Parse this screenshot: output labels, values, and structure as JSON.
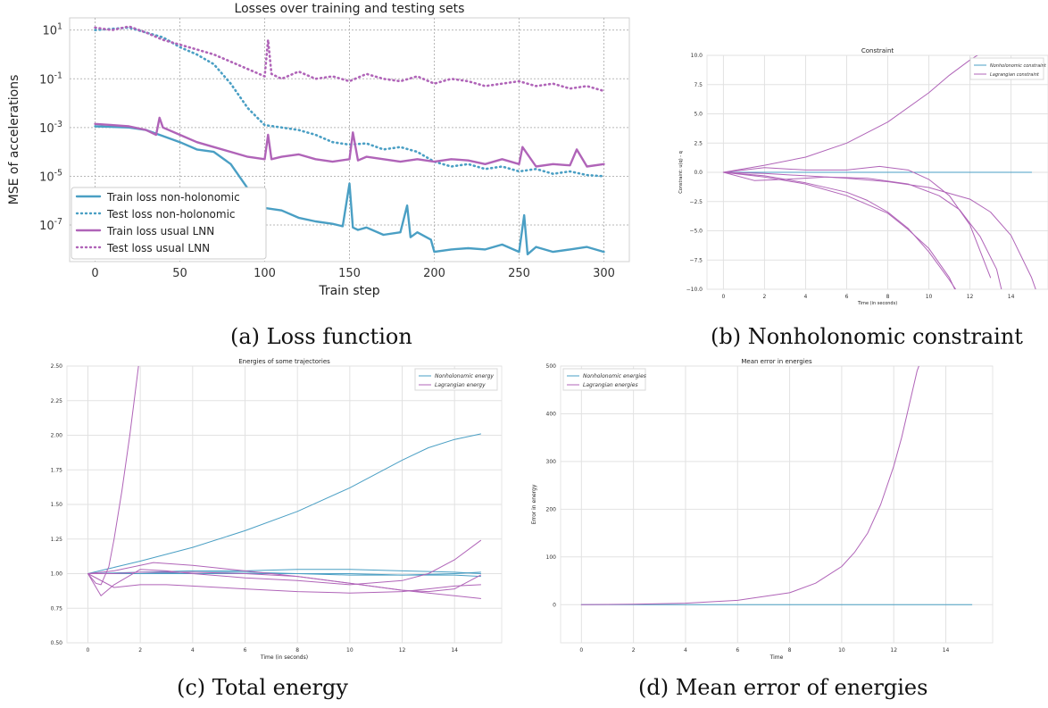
{
  "captions": {
    "a": "(a) Loss function",
    "b": "(b) Nonholonomic constraint",
    "c": "(c) Total energy",
    "d": "(d) Mean error of energies"
  },
  "colors": {
    "blue": "#4a9fc4",
    "purple": "#b064b8",
    "grid": "#c8c8c8"
  },
  "chart_data": [
    {
      "id": "loss",
      "type": "line",
      "title": "Losses over training and testing sets",
      "xlabel": "Train step",
      "ylabel": "MSE of accelerations",
      "xlim": [
        -15,
        315
      ],
      "ylim_log10": [
        -8.5,
        1.5
      ],
      "y_scale": "log",
      "xticks": [
        0,
        50,
        100,
        150,
        200,
        250,
        300
      ],
      "yticks": [
        {
          "value": 1,
          "label": "10^1"
        },
        {
          "value": -1,
          "label": "10^-1"
        },
        {
          "value": -3,
          "label": "10^-3"
        },
        {
          "value": -5,
          "label": "10^-5"
        },
        {
          "value": -7,
          "label": "10^-7"
        }
      ],
      "grid": true,
      "legend_position": "lower-left",
      "series": [
        {
          "name": "Train loss non-holonomic",
          "color": "#4a9fc4",
          "style": "solid",
          "x": [
            0,
            20,
            30,
            40,
            50,
            60,
            70,
            80,
            90,
            100,
            110,
            120,
            130,
            140,
            146,
            150,
            152,
            155,
            160,
            170,
            180,
            184,
            186,
            190,
            198,
            200,
            210,
            220,
            230,
            240,
            250,
            253,
            255,
            260,
            270,
            280,
            290,
            300
          ],
          "log10_y": [
            -2.95,
            -3.0,
            -3.1,
            -3.35,
            -3.6,
            -3.9,
            -4.0,
            -4.5,
            -5.5,
            -6.3,
            -6.4,
            -6.7,
            -6.85,
            -6.95,
            -7.05,
            -5.3,
            -7.1,
            -7.2,
            -7.1,
            -7.4,
            -7.3,
            -6.2,
            -7.5,
            -7.3,
            -7.6,
            -8.1,
            -8.0,
            -7.95,
            -8.0,
            -7.8,
            -8.1,
            -6.6,
            -8.2,
            -7.9,
            -8.1,
            -8.0,
            -7.9,
            -8.1
          ]
        },
        {
          "name": "Test loss non-holonomic",
          "color": "#4a9fc4",
          "style": "dotted",
          "x": [
            0,
            10,
            20,
            30,
            40,
            50,
            60,
            70,
            80,
            90,
            100,
            110,
            120,
            130,
            140,
            150,
            160,
            170,
            180,
            190,
            200,
            210,
            220,
            230,
            240,
            250,
            260,
            270,
            280,
            290,
            300
          ],
          "log10_y": [
            1.0,
            1.05,
            1.1,
            0.9,
            0.7,
            0.3,
            0.0,
            -0.4,
            -1.2,
            -2.2,
            -2.9,
            -3.0,
            -3.1,
            -3.3,
            -3.6,
            -3.7,
            -3.65,
            -3.9,
            -3.8,
            -4.0,
            -4.4,
            -4.6,
            -4.5,
            -4.7,
            -4.6,
            -4.8,
            -4.7,
            -4.9,
            -4.8,
            -4.95,
            -5.0
          ]
        },
        {
          "name": "Train loss usual LNN",
          "color": "#b064b8",
          "style": "solid",
          "x": [
            0,
            10,
            20,
            30,
            36,
            38,
            40,
            50,
            60,
            70,
            80,
            90,
            100,
            102,
            104,
            110,
            120,
            130,
            140,
            150,
            152,
            155,
            160,
            170,
            180,
            190,
            200,
            210,
            220,
            230,
            240,
            250,
            252,
            260,
            270,
            280,
            284,
            290,
            300
          ],
          "log10_y": [
            -2.85,
            -2.9,
            -2.95,
            -3.1,
            -3.3,
            -2.6,
            -3.0,
            -3.3,
            -3.6,
            -3.8,
            -4.0,
            -4.2,
            -4.3,
            -3.3,
            -4.3,
            -4.2,
            -4.1,
            -4.3,
            -4.4,
            -4.3,
            -3.2,
            -4.35,
            -4.2,
            -4.3,
            -4.4,
            -4.3,
            -4.4,
            -4.3,
            -4.35,
            -4.5,
            -4.3,
            -4.5,
            -3.8,
            -4.6,
            -4.5,
            -4.55,
            -3.9,
            -4.6,
            -4.5
          ]
        },
        {
          "name": "Test loss usual LNN",
          "color": "#b064b8",
          "style": "dotted",
          "x": [
            0,
            10,
            20,
            30,
            40,
            50,
            60,
            70,
            80,
            90,
            100,
            102,
            104,
            110,
            120,
            130,
            140,
            150,
            160,
            170,
            180,
            190,
            200,
            210,
            220,
            230,
            240,
            250,
            260,
            270,
            280,
            290,
            300
          ],
          "log10_y": [
            1.1,
            1.0,
            1.15,
            0.9,
            0.6,
            0.4,
            0.2,
            0.0,
            -0.3,
            -0.6,
            -0.9,
            0.6,
            -0.8,
            -1.0,
            -0.7,
            -1.0,
            -0.9,
            -1.1,
            -0.8,
            -1.0,
            -1.1,
            -0.9,
            -1.2,
            -1.0,
            -1.1,
            -1.3,
            -1.2,
            -1.1,
            -1.3,
            -1.2,
            -1.4,
            -1.3,
            -1.5
          ]
        }
      ]
    },
    {
      "id": "constraint",
      "type": "line",
      "title": "Constraint",
      "xlabel": "Time (in seconds)",
      "ylabel": "Constraint: u(q) - q",
      "xlim": [
        -0.8,
        15.8
      ],
      "ylim": [
        -10,
        10
      ],
      "xticks": [
        0,
        2,
        4,
        6,
        8,
        10,
        12,
        14
      ],
      "yticks": [
        {
          "value": 10,
          "label": "10.0"
        },
        {
          "value": 7.5,
          "label": "7.5"
        },
        {
          "value": 5,
          "label": "5.0"
        },
        {
          "value": 2.5,
          "label": "2.5"
        },
        {
          "value": 0,
          "label": "0.0"
        },
        {
          "value": -2.5,
          "label": "−2.5"
        },
        {
          "value": -5,
          "label": "−5.0"
        },
        {
          "value": -7.5,
          "label": "−7.5"
        },
        {
          "value": -10,
          "label": "−10.0"
        }
      ],
      "grid": true,
      "legend_position": "top-right",
      "legend": [
        {
          "label": "Nonholonomic constraint",
          "color": "#4a9fc4"
        },
        {
          "label": "Lagrangian constraint",
          "color": "#b064b8"
        }
      ],
      "series": [
        {
          "color": "#4a9fc4",
          "x": [
            0,
            15
          ],
          "y": [
            0,
            0
          ]
        },
        {
          "color": "#b064b8",
          "x": [
            0,
            2,
            4,
            6,
            8,
            10,
            11,
            12,
            12.8
          ],
          "y": [
            0,
            0.6,
            1.3,
            2.5,
            4.3,
            6.8,
            8.3,
            9.6,
            10.5
          ]
        },
        {
          "color": "#b064b8",
          "x": [
            0,
            1,
            2,
            4,
            6,
            7.6,
            9,
            10,
            11,
            12,
            13
          ],
          "y": [
            0,
            0.2,
            0.4,
            0.2,
            0.2,
            0.5,
            0.2,
            -0.6,
            -2.0,
            -4.5,
            -9.0
          ]
        },
        {
          "color": "#b064b8",
          "x": [
            0,
            1.5,
            3,
            5,
            7,
            9,
            10.5,
            11.5,
            12.5,
            13.3,
            13.6
          ],
          "y": [
            0,
            -0.7,
            -0.6,
            -0.4,
            -0.5,
            -1.0,
            -2.0,
            -3.2,
            -5.5,
            -8.3,
            -10.5
          ]
        },
        {
          "color": "#b064b8",
          "x": [
            0,
            2,
            4,
            6,
            7,
            8,
            9,
            10,
            11,
            11.5
          ],
          "y": [
            0,
            -0.3,
            -0.9,
            -1.7,
            -2.4,
            -3.4,
            -4.8,
            -6.8,
            -9.2,
            -10.5
          ]
        },
        {
          "color": "#b064b8",
          "x": [
            0,
            2,
            4,
            6,
            8,
            9,
            10,
            11,
            11.4
          ],
          "y": [
            0,
            -0.4,
            -1.0,
            -2.0,
            -3.5,
            -4.9,
            -6.5,
            -9.0,
            -10.5
          ]
        },
        {
          "color": "#b064b8",
          "x": [
            0,
            2,
            4,
            6,
            8,
            10,
            12,
            13,
            14,
            15,
            15.3
          ],
          "y": [
            0,
            -0.1,
            -0.3,
            -0.5,
            -0.8,
            -1.3,
            -2.3,
            -3.4,
            -5.4,
            -9.0,
            -10.5
          ]
        }
      ]
    },
    {
      "id": "energies",
      "type": "line",
      "title": "Energies of some trajectories",
      "xlabel": "Time (in seconds)",
      "ylabel": "",
      "xlim": [
        -0.8,
        15.8
      ],
      "ylim": [
        0.5,
        2.5
      ],
      "xticks": [
        0,
        2,
        4,
        6,
        8,
        10,
        12,
        14
      ],
      "yticks": [
        {
          "value": 2.5,
          "label": "2.50"
        },
        {
          "value": 2.25,
          "label": "2.25"
        },
        {
          "value": 2.0,
          "label": "2.00"
        },
        {
          "value": 1.75,
          "label": "1.75"
        },
        {
          "value": 1.5,
          "label": "1.50"
        },
        {
          "value": 1.25,
          "label": "1.25"
        },
        {
          "value": 1.0,
          "label": "1.00"
        },
        {
          "value": 0.75,
          "label": "0.75"
        },
        {
          "value": 0.5,
          "label": "0.50"
        }
      ],
      "grid": true,
      "legend_position": "top-right",
      "legend": [
        {
          "label": "Nonholonomic energy",
          "color": "#4a9fc4"
        },
        {
          "label": "Lagrangian energy",
          "color": "#b064b8"
        }
      ],
      "series": [
        {
          "color": "#4a9fc4",
          "x": [
            0,
            2,
            4,
            6,
            8,
            10,
            12,
            13,
            14,
            15
          ],
          "y": [
            1.0,
            1.09,
            1.19,
            1.31,
            1.45,
            1.62,
            1.82,
            1.91,
            1.97,
            2.01
          ]
        },
        {
          "color": "#4a9fc4",
          "x": [
            0,
            2,
            4,
            6,
            8,
            10,
            12,
            14,
            15
          ],
          "y": [
            1.0,
            1.01,
            1.02,
            1.02,
            1.03,
            1.03,
            1.02,
            1.01,
            1.0
          ]
        },
        {
          "color": "#4a9fc4",
          "x": [
            0,
            2,
            4,
            6,
            8,
            10,
            12,
            14,
            15
          ],
          "y": [
            1.0,
            1.0,
            1.0,
            1.0,
            1.0,
            0.99,
            0.99,
            1.0,
            1.01
          ]
        },
        {
          "color": "#4a9fc4",
          "x": [
            0,
            2,
            4,
            6,
            8,
            10,
            12,
            14,
            15
          ],
          "y": [
            1.0,
            1.0,
            1.01,
            1.01,
            1.0,
            1.0,
            0.99,
            0.99,
            0.98
          ]
        },
        {
          "color": "#b064b8",
          "x": [
            0,
            0.3,
            0.5,
            0.8,
            1.0,
            1.3,
            1.6,
            1.8,
            2.0
          ],
          "y": [
            1.0,
            0.93,
            0.92,
            1.05,
            1.25,
            1.6,
            2.0,
            2.3,
            2.6
          ]
        },
        {
          "color": "#b064b8",
          "x": [
            0,
            0.5,
            1,
            2,
            3,
            4,
            6,
            8,
            10,
            12,
            13,
            14,
            15
          ],
          "y": [
            1.0,
            0.84,
            0.92,
            1.03,
            1.02,
            1.0,
            0.97,
            0.95,
            0.92,
            0.95,
            1.0,
            1.1,
            1.24
          ]
        },
        {
          "color": "#b064b8",
          "x": [
            0,
            1,
            2,
            2.5,
            4,
            6,
            8,
            10,
            12,
            13,
            14,
            15
          ],
          "y": [
            1.0,
            1.02,
            1.06,
            1.08,
            1.06,
            1.02,
            0.98,
            0.93,
            0.88,
            0.86,
            0.84,
            0.82
          ]
        },
        {
          "color": "#b064b8",
          "x": [
            0,
            1,
            2,
            3,
            4,
            6,
            8,
            10,
            12,
            13,
            14,
            15
          ],
          "y": [
            1.0,
            0.9,
            0.92,
            0.92,
            0.91,
            0.89,
            0.87,
            0.86,
            0.87,
            0.89,
            0.91,
            0.92
          ]
        },
        {
          "color": "#b064b8",
          "x": [
            0,
            1,
            2,
            4,
            6,
            8,
            10,
            12,
            13,
            14,
            15
          ],
          "y": [
            1.0,
            1.0,
            1.01,
            1.01,
            1.0,
            0.98,
            0.93,
            0.88,
            0.87,
            0.89,
            0.99
          ]
        }
      ]
    },
    {
      "id": "mean_error",
      "type": "line",
      "title": "Mean error in energies",
      "xlabel": "Time",
      "ylabel": "Error in energy",
      "xlim": [
        -0.8,
        15.8
      ],
      "ylim": [
        -80,
        500
      ],
      "xticks": [
        0,
        2,
        4,
        6,
        8,
        10,
        12,
        14
      ],
      "yticks": [
        {
          "value": 500,
          "label": "500"
        },
        {
          "value": 400,
          "label": "400"
        },
        {
          "value": 300,
          "label": "300"
        },
        {
          "value": 200,
          "label": "200"
        },
        {
          "value": 100,
          "label": "100"
        },
        {
          "value": 0,
          "label": "0"
        }
      ],
      "grid": true,
      "legend_position": "top-left",
      "legend": [
        {
          "label": "Nonholonomic energies",
          "color": "#4a9fc4"
        },
        {
          "label": "Lagrangian energies",
          "color": "#b064b8"
        }
      ],
      "series": [
        {
          "color": "#4a9fc4",
          "x": [
            0,
            15
          ],
          "y": [
            0,
            0
          ]
        },
        {
          "color": "#b064b8",
          "x": [
            0,
            2,
            4,
            6,
            8,
            9,
            10,
            10.5,
            11,
            11.5,
            12,
            12.3,
            12.6,
            12.9,
            13.1
          ],
          "y": [
            0,
            1,
            3,
            9,
            25,
            45,
            80,
            110,
            150,
            210,
            290,
            350,
            420,
            490,
            520
          ]
        }
      ]
    }
  ]
}
